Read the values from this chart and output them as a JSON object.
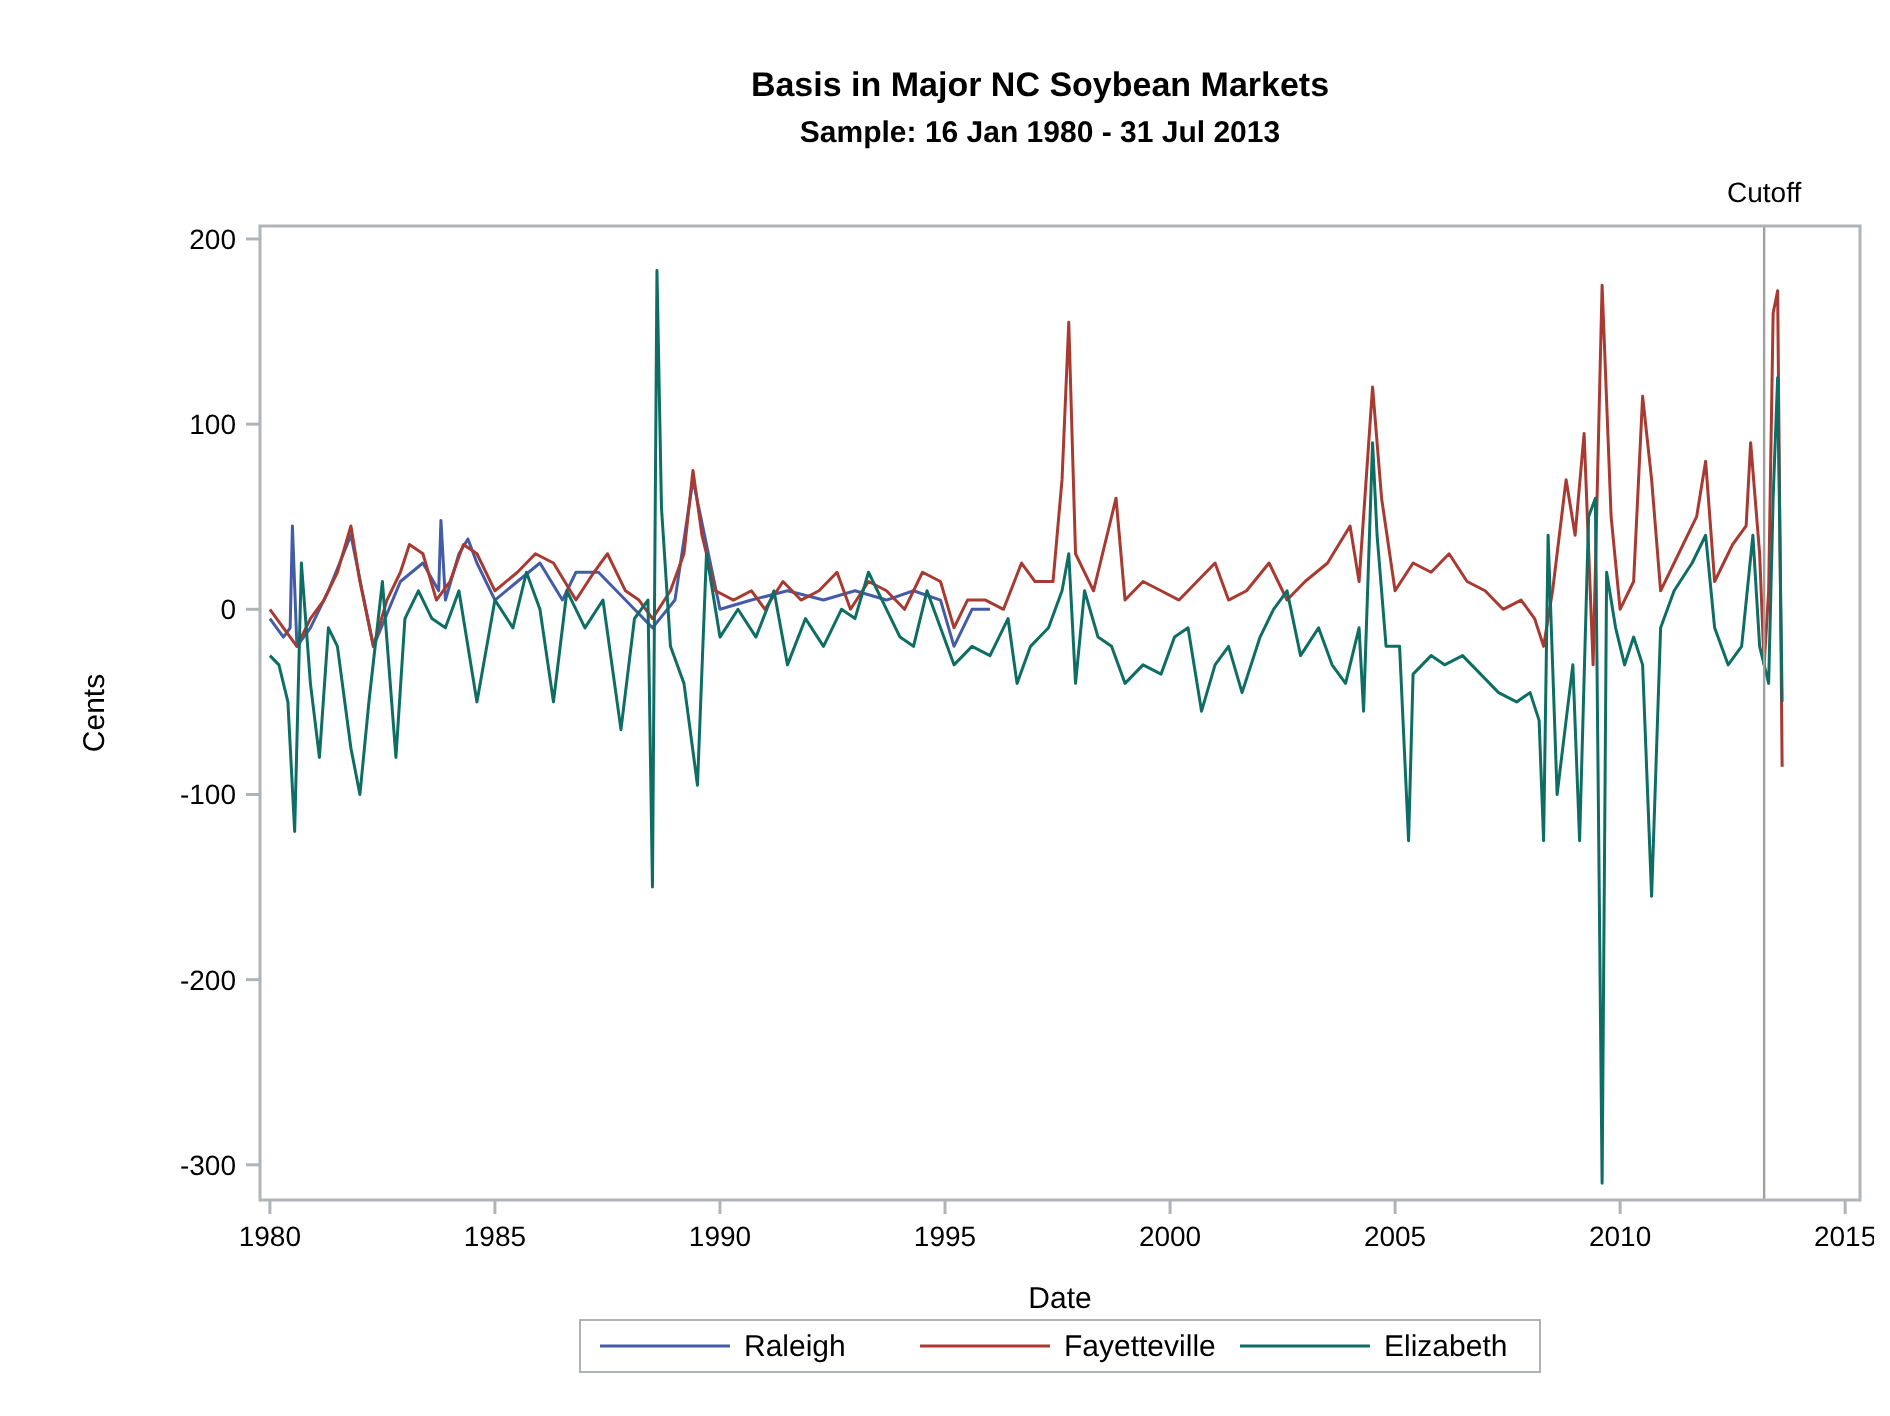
{
  "chart_data": {
    "type": "line",
    "title": "Basis in Major NC Soybean Markets",
    "subtitle": "Sample: 16 Jan 1980 - 31 Jul 2013",
    "xlabel": "Date",
    "ylabel": "Cents",
    "xlim": [
      1979.78,
      2015.33
    ],
    "xticks": [
      1980,
      1985,
      1990,
      1995,
      2000,
      2005,
      2010,
      2015
    ],
    "ylim": [
      -319,
      207
    ],
    "yticks": [
      200,
      100,
      0,
      -100,
      -200,
      -300
    ],
    "grid": false,
    "legend": "bottom",
    "line_style": "solid",
    "ref_lines": [
      {
        "axis": "x",
        "value": 2013.2,
        "label": "Cutoff",
        "color": "#a0a0a0"
      }
    ],
    "series": [
      {
        "name": "Raleigh",
        "color": "#445ca8",
        "x": [
          1980.0,
          1980.3,
          1980.45,
          1980.5,
          1980.6,
          1980.9,
          1981.3,
          1981.8,
          1982.3,
          1982.9,
          1983.4,
          1983.75,
          1983.8,
          1983.9,
          1984.2,
          1984.4,
          1984.6,
          1985.0,
          1985.5,
          1986.0,
          1986.5,
          1986.8,
          1987.3,
          1987.9,
          1988.5,
          1989.0,
          1989.4,
          1990.0,
          1990.7,
          1991.5,
          1992.3,
          1993.0,
          1993.7,
          1994.3,
          1994.9,
          1995.2,
          1995.6,
          1996.0
        ],
        "values": [
          -5,
          -15,
          -10,
          45,
          -20,
          -10,
          10,
          40,
          -20,
          15,
          25,
          10,
          48,
          5,
          30,
          38,
          25,
          5,
          15,
          25,
          5,
          20,
          20,
          5,
          -10,
          5,
          70,
          0,
          5,
          10,
          5,
          10,
          5,
          10,
          5,
          -20,
          0,
          0
        ]
      },
      {
        "name": "Fayetteville",
        "color": "#a83a32",
        "x": [
          1980.0,
          1980.3,
          1980.6,
          1980.9,
          1981.2,
          1981.5,
          1981.8,
          1982.0,
          1982.3,
          1982.6,
          1982.9,
          1983.1,
          1983.4,
          1983.7,
          1984.0,
          1984.3,
          1984.6,
          1985.0,
          1985.5,
          1985.9,
          1986.3,
          1986.8,
          1987.2,
          1987.5,
          1987.9,
          1988.2,
          1988.5,
          1988.9,
          1989.2,
          1989.4,
          1989.6,
          1989.9,
          1990.3,
          1990.7,
          1991.0,
          1991.4,
          1991.8,
          1992.2,
          1992.6,
          1992.9,
          1993.3,
          1993.7,
          1994.1,
          1994.5,
          1994.9,
          1995.2,
          1995.5,
          1995.9,
          1996.3,
          1996.7,
          1997.0,
          1997.4,
          1997.6,
          1997.75,
          1997.9,
          1998.3,
          1998.6,
          1998.8,
          1999.0,
          1999.4,
          1999.8,
          2000.2,
          2000.6,
          2001.0,
          2001.3,
          2001.7,
          2002.2,
          2002.6,
          2003.0,
          2003.5,
          2004.0,
          2004.2,
          2004.5,
          2004.7,
          2005.0,
          2005.4,
          2005.8,
          2006.2,
          2006.6,
          2007.0,
          2007.4,
          2007.8,
          2008.1,
          2008.3,
          2008.5,
          2008.8,
          2009.0,
          2009.2,
          2009.4,
          2009.6,
          2009.8,
          2010.0,
          2010.3,
          2010.5,
          2010.7,
          2010.9,
          2011.3,
          2011.7,
          2011.9,
          2012.1,
          2012.5,
          2012.8,
          2012.9,
          2013.1,
          2013.2,
          2013.3,
          2013.4,
          2013.5,
          2013.6
        ],
        "values": [
          0,
          -10,
          -20,
          -5,
          5,
          20,
          45,
          15,
          -20,
          5,
          20,
          35,
          30,
          5,
          15,
          35,
          30,
          10,
          20,
          30,
          25,
          5,
          20,
          30,
          10,
          5,
          -5,
          10,
          30,
          75,
          40,
          10,
          5,
          10,
          0,
          15,
          5,
          10,
          20,
          0,
          15,
          10,
          0,
          20,
          15,
          -10,
          5,
          5,
          0,
          25,
          15,
          15,
          70,
          155,
          30,
          10,
          40,
          60,
          5,
          15,
          10,
          5,
          15,
          25,
          5,
          10,
          25,
          5,
          15,
          25,
          45,
          15,
          120,
          60,
          10,
          25,
          20,
          30,
          15,
          10,
          0,
          5,
          -5,
          -20,
          10,
          70,
          40,
          95,
          -30,
          175,
          50,
          0,
          15,
          115,
          70,
          10,
          30,
          50,
          80,
          15,
          35,
          45,
          90,
          30,
          -30,
          10,
          160,
          172,
          -85
        ]
      },
      {
        "name": "Elizabeth",
        "color": "#0f6e64",
        "x": [
          1980.0,
          1980.2,
          1980.4,
          1980.55,
          1980.7,
          1980.9,
          1981.1,
          1981.3,
          1981.5,
          1981.8,
          1982.0,
          1982.2,
          1982.5,
          1982.8,
          1983.0,
          1983.3,
          1983.6,
          1983.9,
          1984.2,
          1984.6,
          1985.0,
          1985.4,
          1985.7,
          1986.0,
          1986.3,
          1986.6,
          1987.0,
          1987.4,
          1987.8,
          1988.1,
          1988.4,
          1988.5,
          1988.6,
          1988.7,
          1988.9,
          1989.2,
          1989.5,
          1989.7,
          1990.0,
          1990.4,
          1990.8,
          1991.2,
          1991.5,
          1991.9,
          1992.3,
          1992.7,
          1993.0,
          1993.3,
          1993.7,
          1994.0,
          1994.3,
          1994.6,
          1994.9,
          1995.2,
          1995.6,
          1996.0,
          1996.4,
          1996.6,
          1996.9,
          1997.3,
          1997.6,
          1997.75,
          1997.9,
          1998.1,
          1998.4,
          1998.7,
          1999.0,
          1999.4,
          1999.8,
          2000.1,
          2000.4,
          2000.7,
          2001.0,
          2001.3,
          2001.6,
          2002.0,
          2002.3,
          2002.6,
          2002.9,
          2003.3,
          2003.6,
          2003.9,
          2004.2,
          2004.3,
          2004.5,
          2004.6,
          2004.8,
          2005.1,
          2005.3,
          2005.4,
          2005.8,
          2006.1,
          2006.5,
          2006.9,
          2007.3,
          2007.7,
          2008.0,
          2008.2,
          2008.3,
          2008.4,
          2008.6,
          2008.8,
          2008.95,
          2009.1,
          2009.3,
          2009.45,
          2009.6,
          2009.7,
          2009.9,
          2010.1,
          2010.3,
          2010.5,
          2010.7,
          2010.9,
          2011.2,
          2011.6,
          2011.9,
          2012.1,
          2012.4,
          2012.7,
          2012.95,
          2013.1,
          2013.3,
          2013.4,
          2013.5,
          2013.6
        ],
        "values": [
          -25,
          -30,
          -50,
          -120,
          25,
          -40,
          -80,
          -10,
          -20,
          -75,
          -100,
          -50,
          15,
          -80,
          -5,
          10,
          -5,
          -10,
          10,
          -50,
          5,
          -10,
          20,
          0,
          -50,
          10,
          -10,
          5,
          -65,
          -5,
          5,
          -150,
          183,
          55,
          -20,
          -40,
          -95,
          30,
          -15,
          0,
          -15,
          10,
          -30,
          -5,
          -20,
          0,
          -5,
          20,
          0,
          -15,
          -20,
          10,
          -10,
          -30,
          -20,
          -25,
          -5,
          -40,
          -20,
          -10,
          10,
          30,
          -40,
          10,
          -15,
          -20,
          -40,
          -30,
          -35,
          -15,
          -10,
          -55,
          -30,
          -20,
          -45,
          -15,
          0,
          10,
          -25,
          -10,
          -30,
          -40,
          -10,
          -55,
          90,
          40,
          -20,
          -20,
          -125,
          -35,
          -25,
          -30,
          -25,
          -35,
          -45,
          -50,
          -45,
          -60,
          -125,
          40,
          -100,
          -60,
          -30,
          -125,
          50,
          60,
          -310,
          20,
          -10,
          -30,
          -15,
          -30,
          -155,
          -10,
          10,
          25,
          40,
          -10,
          -30,
          -20,
          40,
          -20,
          -40,
          60,
          125,
          -50
        ]
      }
    ]
  }
}
